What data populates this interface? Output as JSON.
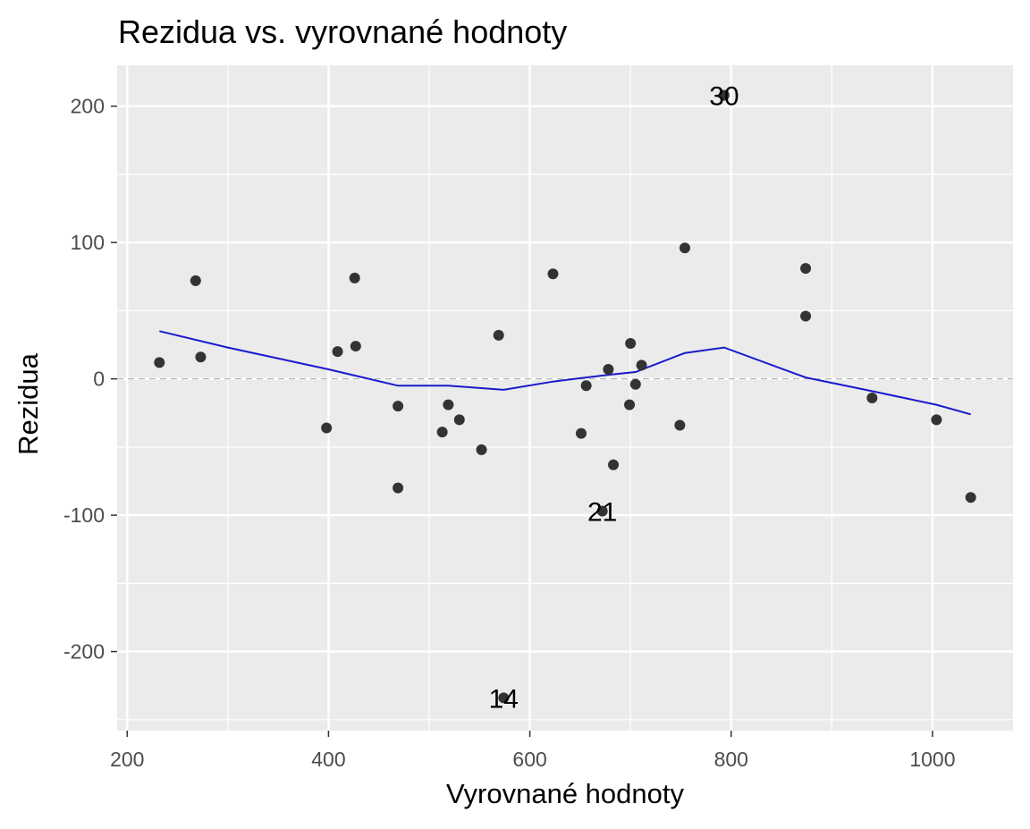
{
  "chart_data": {
    "type": "scatter",
    "title": "Rezidua vs. vyrovnané hodnoty",
    "xlabel": "Vyrovnané hodnoty",
    "ylabel": "Rezidua",
    "xlim": [
      190,
      1080
    ],
    "ylim": [
      -258,
      230
    ],
    "x_ticks": [
      200,
      400,
      600,
      800,
      1000
    ],
    "y_ticks": [
      -200,
      -100,
      0,
      100,
      200
    ],
    "x_tick_labels": [
      "200",
      "400",
      "600",
      "800",
      "1000"
    ],
    "y_tick_labels": [
      "-200",
      "-100",
      "0",
      "100",
      "200"
    ],
    "grid": true,
    "reference_line": {
      "y": 0,
      "style": "dashed",
      "color": "#b3b3b3"
    },
    "point_color": "#333333",
    "smooth_color": "#1a1acd",
    "background_color": "#ebebeb",
    "points": [
      {
        "x": 232,
        "y": 12
      },
      {
        "x": 268,
        "y": 72
      },
      {
        "x": 273,
        "y": 16
      },
      {
        "x": 398,
        "y": -36
      },
      {
        "x": 409,
        "y": 20
      },
      {
        "x": 426,
        "y": 74
      },
      {
        "x": 427,
        "y": 24
      },
      {
        "x": 469,
        "y": -20
      },
      {
        "x": 469,
        "y": -80
      },
      {
        "x": 513,
        "y": -39
      },
      {
        "x": 519,
        "y": -19
      },
      {
        "x": 530,
        "y": -30
      },
      {
        "x": 552,
        "y": -52
      },
      {
        "x": 569,
        "y": 32
      },
      {
        "x": 574,
        "y": -234,
        "label": "14"
      },
      {
        "x": 623,
        "y": 77
      },
      {
        "x": 651,
        "y": -40
      },
      {
        "x": 656,
        "y": -5
      },
      {
        "x": 672,
        "y": -97,
        "label": "21"
      },
      {
        "x": 678,
        "y": 7
      },
      {
        "x": 683,
        "y": -63
      },
      {
        "x": 699,
        "y": -19
      },
      {
        "x": 700,
        "y": 26
      },
      {
        "x": 705,
        "y": -4
      },
      {
        "x": 711,
        "y": 10
      },
      {
        "x": 749,
        "y": -34
      },
      {
        "x": 754,
        "y": 96
      },
      {
        "x": 793,
        "y": 208,
        "label": "30"
      },
      {
        "x": 874,
        "y": 81
      },
      {
        "x": 874,
        "y": 46
      },
      {
        "x": 940,
        "y": -14
      },
      {
        "x": 1004,
        "y": -30
      },
      {
        "x": 1038,
        "y": -87
      }
    ],
    "smooth_line": [
      {
        "x": 232,
        "y": 35
      },
      {
        "x": 300,
        "y": 23
      },
      {
        "x": 400,
        "y": 7
      },
      {
        "x": 469,
        "y": -5
      },
      {
        "x": 519,
        "y": -5
      },
      {
        "x": 574,
        "y": -8
      },
      {
        "x": 623,
        "y": -2
      },
      {
        "x": 678,
        "y": 3
      },
      {
        "x": 705,
        "y": 5
      },
      {
        "x": 754,
        "y": 19
      },
      {
        "x": 793,
        "y": 23
      },
      {
        "x": 874,
        "y": 1
      },
      {
        "x": 940,
        "y": -9
      },
      {
        "x": 1004,
        "y": -19
      },
      {
        "x": 1038,
        "y": -26
      }
    ]
  }
}
